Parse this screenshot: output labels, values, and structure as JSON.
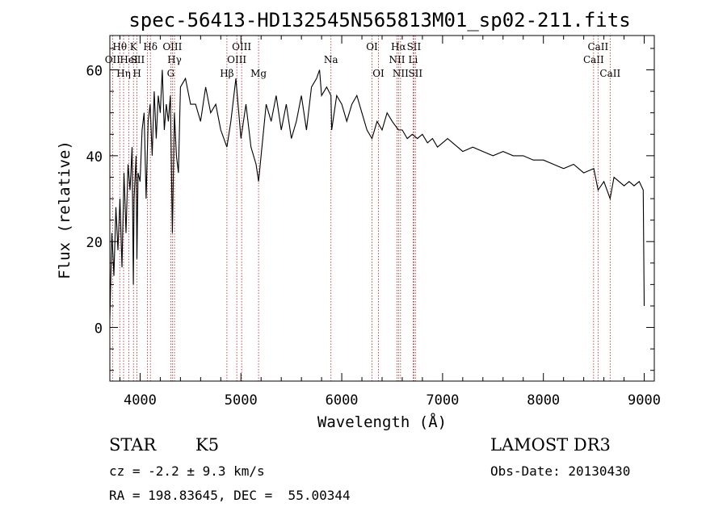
{
  "chart_data": {
    "type": "line",
    "title": "spec-56413-HD132545N565813M01_sp02-211.fits",
    "xlabel": "Wavelength (Å)",
    "ylabel": "Flux (relative)",
    "xlim": [
      3700,
      9100
    ],
    "ylim": [
      -12.5,
      68
    ],
    "xticks": [
      4000,
      5000,
      6000,
      7000,
      8000,
      9000
    ],
    "yticks": [
      0,
      20,
      40,
      60
    ],
    "series": [
      {
        "name": "flux",
        "x": [
          3700,
          3720,
          3740,
          3760,
          3780,
          3800,
          3820,
          3840,
          3860,
          3880,
          3900,
          3920,
          3933,
          3940,
          3960,
          3968,
          3980,
          4000,
          4020,
          4040,
          4060,
          4080,
          4100,
          4120,
          4140,
          4160,
          4180,
          4200,
          4220,
          4240,
          4260,
          4280,
          4300,
          4320,
          4340,
          4360,
          4380,
          4400,
          4450,
          4500,
          4550,
          4600,
          4650,
          4700,
          4750,
          4800,
          4861,
          4900,
          4950,
          5000,
          5050,
          5100,
          5150,
          5175,
          5200,
          5250,
          5300,
          5350,
          5400,
          5450,
          5500,
          5550,
          5600,
          5650,
          5700,
          5750,
          5780,
          5800,
          5850,
          5893,
          5900,
          5950,
          6000,
          6050,
          6100,
          6150,
          6200,
          6250,
          6300,
          6350,
          6400,
          6450,
          6500,
          6563,
          6600,
          6650,
          6700,
          6750,
          6800,
          6850,
          6900,
          6950,
          7000,
          7050,
          7100,
          7150,
          7200,
          7300,
          7400,
          7500,
          7600,
          7700,
          7800,
          7900,
          8000,
          8100,
          8200,
          8300,
          8400,
          8500,
          8542,
          8600,
          8662,
          8700,
          8750,
          8800,
          8850,
          8900,
          8950,
          8990,
          9000
        ],
        "values": [
          2,
          22,
          12,
          28,
          18,
          30,
          14,
          36,
          22,
          38,
          32,
          42,
          10,
          30,
          40,
          16,
          36,
          34,
          46,
          50,
          30,
          48,
          52,
          40,
          55,
          44,
          54,
          50,
          60,
          46,
          52,
          48,
          54,
          22,
          50,
          40,
          36,
          56,
          58,
          52,
          52,
          48,
          56,
          50,
          52,
          46,
          42,
          48,
          58,
          44,
          52,
          42,
          38,
          34,
          40,
          52,
          48,
          54,
          46,
          52,
          44,
          48,
          54,
          46,
          56,
          58,
          60,
          54,
          56,
          54,
          46,
          54,
          52,
          48,
          52,
          54,
          50,
          46,
          44,
          48,
          46,
          50,
          48,
          46,
          46,
          44,
          45,
          44,
          45,
          43,
          44,
          42,
          43,
          44,
          43,
          42,
          41,
          42,
          41,
          40,
          41,
          40,
          40,
          39,
          39,
          38,
          37,
          38,
          36,
          37,
          32,
          34,
          30,
          35,
          34,
          33,
          34,
          33,
          34,
          32,
          5
        ]
      }
    ],
    "lines": [
      {
        "label": "OII",
        "wavelength": 3727,
        "row": 2,
        "offset": 0
      },
      {
        "label": "Hθ",
        "wavelength": 3798,
        "row": 1,
        "offset": 0
      },
      {
        "label": "Hη",
        "wavelength": 3836,
        "row": 3,
        "offset": 0
      },
      {
        "label": "HeI",
        "wavelength": 3889,
        "row": 2,
        "offset": 0
      },
      {
        "label": "K",
        "wavelength": 3934,
        "row": 1,
        "offset": 0
      },
      {
        "label": "H",
        "wavelength": 3969,
        "row": 3,
        "offset": 0
      },
      {
        "label": "SII",
        "wavelength": 4072,
        "row": 2,
        "offset": -12
      },
      {
        "label": "Hδ",
        "wavelength": 4102,
        "row": 1,
        "offset": 0
      },
      {
        "label": "G",
        "wavelength": 4304,
        "row": 3,
        "offset": 0
      },
      {
        "label": "OIII",
        "wavelength": 4320,
        "row": 1,
        "offset": 0
      },
      {
        "label": "Hγ",
        "wavelength": 4341,
        "row": 2,
        "offset": 0
      },
      {
        "label": "Hβ",
        "wavelength": 4861,
        "row": 3,
        "offset": 0
      },
      {
        "label": "OIII",
        "wavelength": 4959,
        "row": 2,
        "offset": 0
      },
      {
        "label": "OIII",
        "wavelength": 5007,
        "row": 1,
        "offset": 0
      },
      {
        "label": "Mg",
        "wavelength": 5175,
        "row": 3,
        "offset": 0
      },
      {
        "label": "Na",
        "wavelength": 5893,
        "row": 2,
        "offset": 0
      },
      {
        "label": "OI",
        "wavelength": 6300,
        "row": 1,
        "offset": 0
      },
      {
        "label": "OI",
        "wavelength": 6364,
        "row": 3,
        "offset": 0
      },
      {
        "label": "NII",
        "wavelength": 6548,
        "row": 2,
        "offset": 0
      },
      {
        "label": "Hα",
        "wavelength": 6563,
        "row": 1,
        "offset": 0
      },
      {
        "label": "NII",
        "wavelength": 6583,
        "row": 3,
        "offset": 0
      },
      {
        "label": "Li",
        "wavelength": 6708,
        "row": 2,
        "offset": 0
      },
      {
        "label": "SII",
        "wavelength": 6716,
        "row": 1,
        "offset": 0
      },
      {
        "label": "SII",
        "wavelength": 6731,
        "row": 3,
        "offset": 0
      },
      {
        "label": "CaII",
        "wavelength": 8498,
        "row": 2,
        "offset": 0
      },
      {
        "label": "CaII",
        "wavelength": 8542,
        "row": 1,
        "offset": 0
      },
      {
        "label": "CaII",
        "wavelength": 8662,
        "row": 3,
        "offset": 0
      }
    ],
    "colors": {
      "spectrum": "#000000",
      "line_marker": "#b22222",
      "axis": "#000000"
    }
  },
  "info": {
    "object_class": "STAR",
    "subclass": "K5",
    "redshift": "cz = -2.2 ± 9.3 km/s",
    "coordinates": "RA = 198.83645, DEC =  55.00344",
    "survey": "LAMOST DR3",
    "obs_date": "Obs-Date: 20130430"
  }
}
